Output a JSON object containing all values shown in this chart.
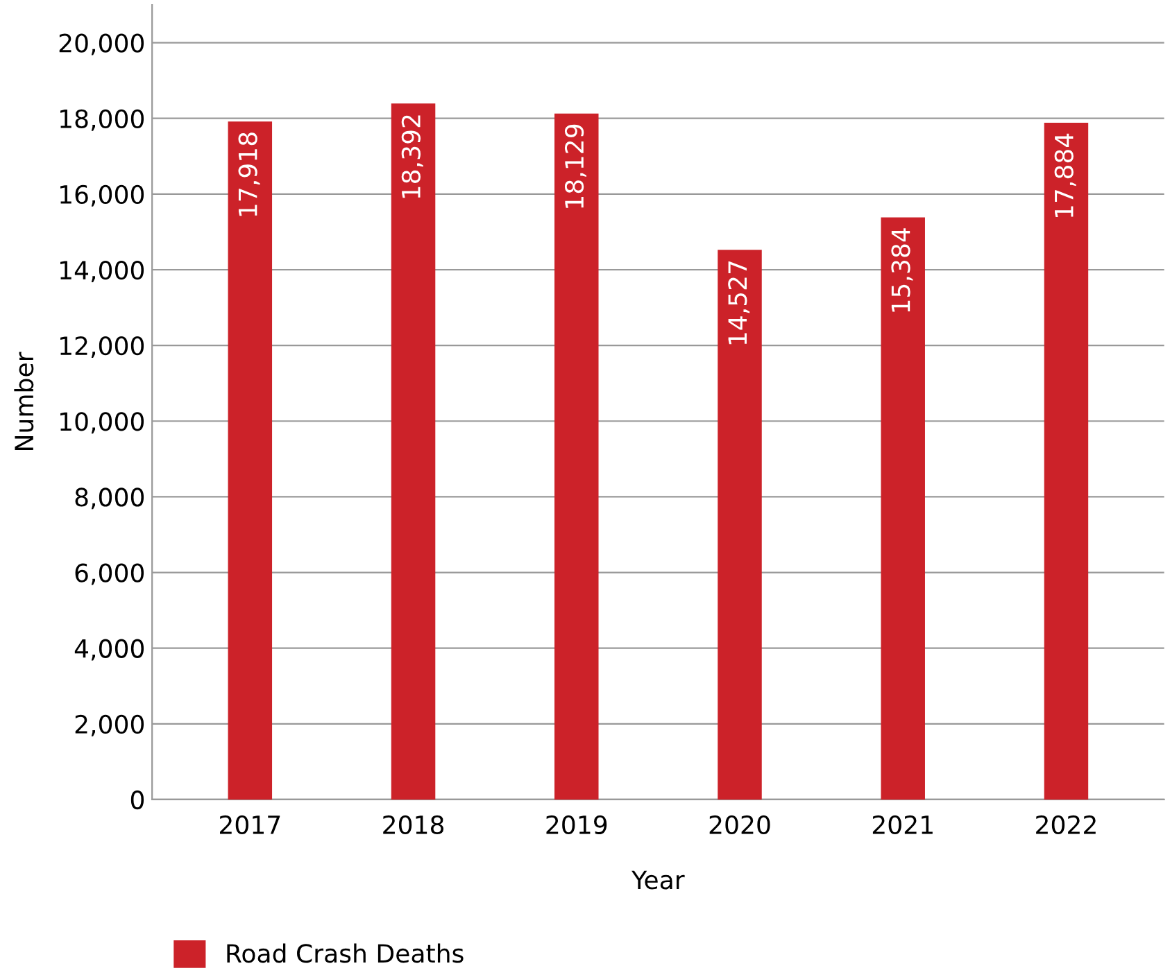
{
  "chart_data": {
    "type": "bar",
    "xlabel": "Year",
    "ylabel": "Number",
    "categories": [
      "2017",
      "2018",
      "2019",
      "2020",
      "2021",
      "2022"
    ],
    "series": [
      {
        "name": "Road Crash Deaths",
        "color": "#cc2229",
        "values": [
          17918,
          18392,
          18129,
          14527,
          15384,
          17884
        ],
        "value_labels": [
          "17,918",
          "18,392",
          "18,129",
          "14,527",
          "15,384",
          "17,884"
        ]
      }
    ],
    "ylim": [
      0,
      21000
    ],
    "yticks": [
      {
        "value": 0,
        "label": "0"
      },
      {
        "value": 2000,
        "label": "2,000"
      },
      {
        "value": 4000,
        "label": "4,000"
      },
      {
        "value": 6000,
        "label": "6,000"
      },
      {
        "value": 8000,
        "label": "8,000"
      },
      {
        "value": 10000,
        "label": "10,000"
      },
      {
        "value": 12000,
        "label": "12,000"
      },
      {
        "value": 14000,
        "label": "14,000"
      },
      {
        "value": 16000,
        "label": "16,000"
      },
      {
        "value": 18000,
        "label": "18,000"
      },
      {
        "value": 20000,
        "label": "20,000"
      }
    ],
    "grid": "y",
    "legend": "bottom left"
  }
}
